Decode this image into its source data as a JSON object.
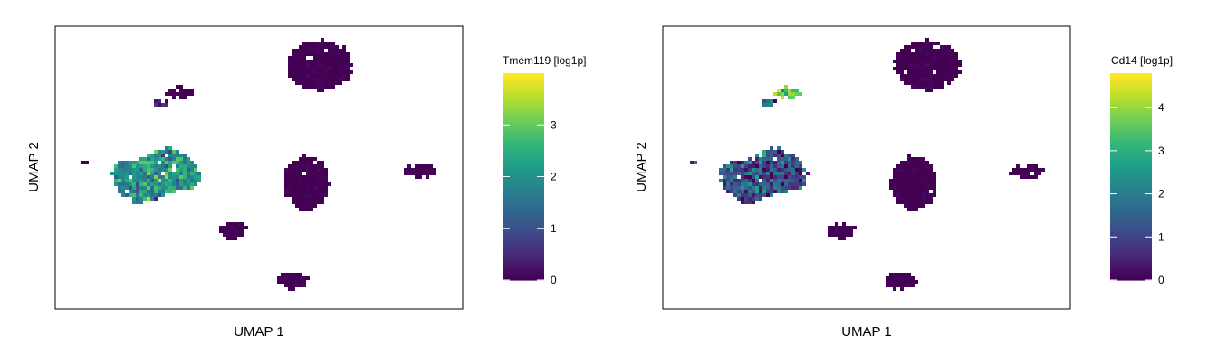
{
  "colors": {
    "viridis": [
      "#440154",
      "#482878",
      "#3e4989",
      "#31688e",
      "#26828e",
      "#1f9e89",
      "#35b779",
      "#6ece58",
      "#b5de2b",
      "#fde725"
    ],
    "frame": "#000000",
    "background": "#ffffff"
  },
  "chart_data": [
    {
      "type": "scatter",
      "title": "",
      "xlabel": "UMAP 1",
      "ylabel": "UMAP 2",
      "grid": false,
      "legend": {
        "title": "Tmem119 [log1p]",
        "placement": "right",
        "range": [
          0,
          4.0
        ],
        "ticks": [
          "0",
          "1",
          "2",
          "3"
        ],
        "tick_values": [
          0,
          1,
          2,
          3
        ]
      },
      "clusters": [
        {
          "name": "",
          "shape": "ellipse",
          "center": [
            7.6,
            8.0
          ],
          "radius": [
            1.9,
            1.6
          ],
          "expr_mean": 0.0,
          "expr_sd": 0.05
        },
        {
          "name": "",
          "shape": "blob",
          "center": [
            -2.1,
            0.7
          ],
          "radius": [
            2.6,
            1.5
          ],
          "expr_mean": 2.0,
          "expr_sd": 0.55
        },
        {
          "name": "",
          "shape": "ellipse",
          "center": [
            6.8,
            0.2
          ],
          "radius": [
            1.3,
            1.8
          ],
          "expr_mean": 0.0,
          "expr_sd": 0.05
        },
        {
          "name": "",
          "shape": "ellipse",
          "center": [
            2.5,
            -2.9
          ],
          "radius": [
            0.8,
            0.5
          ],
          "expr_mean": 0.0,
          "expr_sd": 0.05
        },
        {
          "name": "",
          "shape": "ellipse",
          "center": [
            6.0,
            -6.2
          ],
          "radius": [
            0.9,
            0.5
          ],
          "expr_mean": 0.0,
          "expr_sd": 0.05
        },
        {
          "name": "",
          "shape": "ellipse",
          "center": [
            13.5,
            1.0
          ],
          "radius": [
            1.0,
            0.35
          ],
          "expr_mean": 0.0,
          "expr_sd": 0.05
        },
        {
          "name": "",
          "shape": "ellipse",
          "center": [
            -6.2,
            1.6
          ],
          "radius": [
            0.2,
            0.15
          ],
          "expr_mean": 0.0,
          "expr_sd": 0.05
        },
        {
          "name": "",
          "shape": "ellipse",
          "center": [
            -0.7,
            6.2
          ],
          "radius": [
            0.8,
            0.3
          ],
          "expr_mean": 0.0,
          "expr_sd": 0.05
        },
        {
          "name": "",
          "shape": "ellipse",
          "center": [
            -1.8,
            5.5
          ],
          "radius": [
            0.4,
            0.2
          ],
          "expr_mean": 0.4,
          "expr_sd": 0.3
        }
      ]
    },
    {
      "type": "scatter",
      "title": "",
      "xlabel": "UMAP 1",
      "ylabel": "UMAP 2",
      "grid": false,
      "legend": {
        "title": "Cd14 [log1p]",
        "placement": "right",
        "range": [
          0,
          4.8
        ],
        "ticks": [
          "0",
          "1",
          "2",
          "3",
          "4"
        ],
        "tick_values": [
          0,
          1,
          2,
          3,
          4
        ]
      },
      "clusters": [
        {
          "name": "",
          "shape": "ellipse",
          "center": [
            7.6,
            8.0
          ],
          "radius": [
            1.9,
            1.6
          ],
          "expr_mean": 0.0,
          "expr_sd": 0.05
        },
        {
          "name": "",
          "shape": "blob",
          "center": [
            -2.1,
            0.7
          ],
          "radius": [
            2.6,
            1.5
          ],
          "expr_mean": 1.2,
          "expr_sd": 0.8
        },
        {
          "name": "",
          "shape": "ellipse",
          "center": [
            6.8,
            0.2
          ],
          "radius": [
            1.3,
            1.8
          ],
          "expr_mean": 0.0,
          "expr_sd": 0.05
        },
        {
          "name": "",
          "shape": "ellipse",
          "center": [
            2.5,
            -2.9
          ],
          "radius": [
            0.8,
            0.5
          ],
          "expr_mean": 0.0,
          "expr_sd": 0.05
        },
        {
          "name": "",
          "shape": "ellipse",
          "center": [
            6.0,
            -6.2
          ],
          "radius": [
            0.9,
            0.5
          ],
          "expr_mean": 0.0,
          "expr_sd": 0.05
        },
        {
          "name": "",
          "shape": "ellipse",
          "center": [
            13.5,
            1.0
          ],
          "radius": [
            1.0,
            0.35
          ],
          "expr_mean": 0.0,
          "expr_sd": 0.05
        },
        {
          "name": "",
          "shape": "ellipse",
          "center": [
            -6.2,
            1.6
          ],
          "radius": [
            0.2,
            0.15
          ],
          "expr_mean": 0.8,
          "expr_sd": 0.5
        },
        {
          "name": "",
          "shape": "ellipse",
          "center": [
            -0.7,
            6.2
          ],
          "radius": [
            0.8,
            0.3
          ],
          "expr_mean": 3.8,
          "expr_sd": 0.6
        },
        {
          "name": "",
          "shape": "ellipse",
          "center": [
            -1.8,
            5.5
          ],
          "radius": [
            0.4,
            0.2
          ],
          "expr_mean": 1.5,
          "expr_sd": 0.6
        }
      ]
    }
  ]
}
